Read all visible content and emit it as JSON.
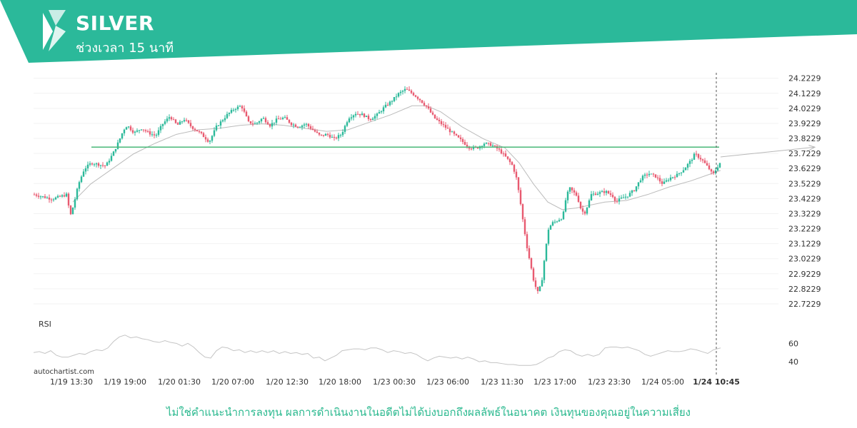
{
  "header": {
    "symbol": "SILVER",
    "timeframe": "ช่วงเวลา 15 นาที",
    "band_color": "#2bb99a"
  },
  "footer": {
    "watermark": "autochartist.com",
    "disclaimer": "ไม่ใช่คำแนะนำการลงทุน ผลการดำเนินงานในอดีตไม่ได้บ่งบอกถึงผลลัพธ์ในอนาคต เงินทุนของคุณอยู่ในความเสี่ยง"
  },
  "chart_data": {
    "type": "candlestick",
    "y_ticks": [
      "24.2229",
      "24.1229",
      "24.0229",
      "23.9229",
      "23.8229",
      "23.7229",
      "23.6229",
      "23.5229",
      "23.4229",
      "23.3229",
      "23.2229",
      "23.1229",
      "23.0229",
      "22.9229",
      "22.8229",
      "22.7229"
    ],
    "ylim": [
      22.68,
      24.25
    ],
    "x_ticks": [
      "1/19 13:30",
      "1/19 19:00",
      "1/20 01:30",
      "1/20 07:00",
      "1/20 12:30",
      "1/20 18:00",
      "1/23 00:30",
      "1/23 06:00",
      "1/23 11:30",
      "1/23 17:00",
      "1/23 23:30",
      "1/24 05:00",
      "1/24 10:45"
    ],
    "resistance_level": 23.765,
    "colors": {
      "up": "#2bb99a",
      "down": "#e85a70",
      "support": "#48b878",
      "ma": "#bbbbbb",
      "rsi": "#c4c4c4"
    },
    "price_path": [
      [
        0,
        23.45
      ],
      [
        8,
        23.44
      ],
      [
        25,
        23.42
      ],
      [
        46,
        23.45
      ],
      [
        50,
        23.3
      ],
      [
        55,
        23.38
      ],
      [
        62,
        23.52
      ],
      [
        70,
        23.62
      ],
      [
        80,
        23.66
      ],
      [
        90,
        23.65
      ],
      [
        100,
        23.64
      ],
      [
        110,
        23.72
      ],
      [
        118,
        23.8
      ],
      [
        125,
        23.88
      ],
      [
        130,
        23.91
      ],
      [
        140,
        23.86
      ],
      [
        150,
        23.89
      ],
      [
        160,
        23.86
      ],
      [
        170,
        23.84
      ],
      [
        180,
        23.92
      ],
      [
        190,
        23.97
      ],
      [
        200,
        23.91
      ],
      [
        210,
        23.95
      ],
      [
        220,
        23.9
      ],
      [
        232,
        23.86
      ],
      [
        245,
        23.8
      ],
      [
        255,
        23.9
      ],
      [
        270,
        23.98
      ],
      [
        280,
        24.02
      ],
      [
        290,
        24.04
      ],
      [
        300,
        23.93
      ],
      [
        310,
        23.92
      ],
      [
        320,
        23.96
      ],
      [
        330,
        23.91
      ],
      [
        340,
        23.95
      ],
      [
        350,
        23.96
      ],
      [
        360,
        23.92
      ],
      [
        370,
        23.9
      ],
      [
        380,
        23.92
      ],
      [
        390,
        23.88
      ],
      [
        400,
        23.84
      ],
      [
        410,
        23.85
      ],
      [
        420,
        23.82
      ],
      [
        430,
        23.85
      ],
      [
        440,
        23.96
      ],
      [
        450,
        23.99
      ],
      [
        460,
        23.98
      ],
      [
        470,
        23.95
      ],
      [
        480,
        23.98
      ],
      [
        490,
        24.03
      ],
      [
        500,
        24.07
      ],
      [
        510,
        24.12
      ],
      [
        520,
        24.15
      ],
      [
        530,
        24.12
      ],
      [
        540,
        24.08
      ],
      [
        550,
        24.03
      ],
      [
        560,
        23.96
      ],
      [
        570,
        23.92
      ],
      [
        580,
        23.88
      ],
      [
        590,
        23.84
      ],
      [
        600,
        23.8
      ],
      [
        610,
        23.76
      ],
      [
        620,
        23.76
      ],
      [
        630,
        23.79
      ],
      [
        640,
        23.78
      ],
      [
        650,
        23.75
      ],
      [
        660,
        23.7
      ],
      [
        670,
        23.64
      ],
      [
        675,
        23.56
      ],
      [
        680,
        23.42
      ],
      [
        685,
        23.25
      ],
      [
        690,
        23.1
      ],
      [
        695,
        22.98
      ],
      [
        700,
        22.86
      ],
      [
        705,
        22.8
      ],
      [
        710,
        22.85
      ],
      [
        715,
        23.05
      ],
      [
        720,
        23.22
      ],
      [
        725,
        23.26
      ],
      [
        730,
        23.27
      ],
      [
        740,
        23.3
      ],
      [
        745,
        23.44
      ],
      [
        750,
        23.49
      ],
      [
        760,
        23.44
      ],
      [
        765,
        23.36
      ],
      [
        770,
        23.32
      ],
      [
        775,
        23.38
      ],
      [
        780,
        23.45
      ],
      [
        790,
        23.46
      ],
      [
        800,
        23.47
      ],
      [
        810,
        23.44
      ],
      [
        815,
        23.4
      ],
      [
        820,
        23.42
      ],
      [
        830,
        23.44
      ],
      [
        840,
        23.48
      ],
      [
        850,
        23.56
      ],
      [
        860,
        23.59
      ],
      [
        870,
        23.57
      ],
      [
        880,
        23.52
      ],
      [
        890,
        23.56
      ],
      [
        900,
        23.58
      ],
      [
        910,
        23.62
      ],
      [
        920,
        23.68
      ],
      [
        925,
        23.72
      ],
      [
        935,
        23.68
      ],
      [
        945,
        23.62
      ],
      [
        950,
        23.58
      ],
      [
        955,
        23.62
      ],
      [
        960,
        23.66
      ],
      [
        962,
        23.7
      ]
    ],
    "ma_path": [
      [
        55,
        23.4
      ],
      [
        80,
        23.52
      ],
      [
        110,
        23.62
      ],
      [
        140,
        23.72
      ],
      [
        170,
        23.79
      ],
      [
        200,
        23.85
      ],
      [
        230,
        23.88
      ],
      [
        260,
        23.89
      ],
      [
        290,
        23.91
      ],
      [
        320,
        23.92
      ],
      [
        350,
        23.91
      ],
      [
        380,
        23.89
      ],
      [
        410,
        23.87
      ],
      [
        440,
        23.88
      ],
      [
        470,
        23.93
      ],
      [
        500,
        23.98
      ],
      [
        530,
        24.04
      ],
      [
        550,
        24.04
      ],
      [
        570,
        24.0
      ],
      [
        600,
        23.9
      ],
      [
        630,
        23.82
      ],
      [
        660,
        23.76
      ],
      [
        680,
        23.66
      ],
      [
        700,
        23.52
      ],
      [
        720,
        23.4
      ],
      [
        740,
        23.35
      ],
      [
        760,
        23.36
      ],
      [
        780,
        23.38
      ],
      [
        800,
        23.4
      ],
      [
        830,
        23.41
      ],
      [
        860,
        23.45
      ],
      [
        890,
        23.5
      ],
      [
        920,
        23.54
      ],
      [
        950,
        23.59
      ],
      [
        962,
        23.61
      ]
    ],
    "forecast": {
      "from": [
        962,
        23.7
      ],
      "to": [
        1094,
        23.765
      ]
    },
    "rsi": {
      "label": "RSI",
      "y_ticks": [
        "60",
        "40"
      ],
      "ylim": [
        30,
        75
      ],
      "values": [
        [
          0,
          50
        ],
        [
          8,
          51
        ],
        [
          16,
          49
        ],
        [
          24,
          52
        ],
        [
          32,
          47
        ],
        [
          40,
          45
        ],
        [
          48,
          45
        ],
        [
          56,
          47
        ],
        [
          64,
          49
        ],
        [
          72,
          48
        ],
        [
          80,
          51
        ],
        [
          88,
          53
        ],
        [
          96,
          52
        ],
        [
          104,
          55
        ],
        [
          112,
          62
        ],
        [
          120,
          67
        ],
        [
          128,
          69
        ],
        [
          136,
          66
        ],
        [
          144,
          67
        ],
        [
          152,
          65
        ],
        [
          160,
          64
        ],
        [
          168,
          62
        ],
        [
          176,
          61
        ],
        [
          184,
          63
        ],
        [
          192,
          61
        ],
        [
          200,
          60
        ],
        [
          208,
          57
        ],
        [
          216,
          60
        ],
        [
          224,
          56
        ],
        [
          232,
          50
        ],
        [
          240,
          45
        ],
        [
          248,
          44
        ],
        [
          256,
          52
        ],
        [
          264,
          56
        ],
        [
          272,
          55
        ],
        [
          280,
          52
        ],
        [
          288,
          53
        ],
        [
          296,
          50
        ],
        [
          304,
          52
        ],
        [
          312,
          50
        ],
        [
          320,
          52
        ],
        [
          328,
          50
        ],
        [
          336,
          52
        ],
        [
          344,
          49
        ],
        [
          352,
          51
        ],
        [
          360,
          49
        ],
        [
          368,
          50
        ],
        [
          376,
          48
        ],
        [
          384,
          49
        ],
        [
          392,
          44
        ],
        [
          400,
          45
        ],
        [
          408,
          41
        ],
        [
          416,
          44
        ],
        [
          424,
          47
        ],
        [
          432,
          52
        ],
        [
          440,
          53
        ],
        [
          448,
          54
        ],
        [
          456,
          54
        ],
        [
          464,
          53
        ],
        [
          472,
          55
        ],
        [
          480,
          55
        ],
        [
          488,
          53
        ],
        [
          496,
          50
        ],
        [
          504,
          52
        ],
        [
          512,
          51
        ],
        [
          520,
          49
        ],
        [
          528,
          50
        ],
        [
          536,
          48
        ],
        [
          544,
          44
        ],
        [
          552,
          41
        ],
        [
          560,
          44
        ],
        [
          568,
          46
        ],
        [
          576,
          45
        ],
        [
          584,
          44
        ],
        [
          592,
          45
        ],
        [
          600,
          43
        ],
        [
          608,
          45
        ],
        [
          616,
          43
        ],
        [
          624,
          40
        ],
        [
          632,
          41
        ],
        [
          640,
          39
        ],
        [
          648,
          39
        ],
        [
          656,
          38
        ],
        [
          664,
          37
        ],
        [
          672,
          37
        ],
        [
          680,
          36
        ],
        [
          688,
          36
        ],
        [
          696,
          36
        ],
        [
          704,
          37
        ],
        [
          712,
          40
        ],
        [
          720,
          44
        ],
        [
          728,
          46
        ],
        [
          736,
          51
        ],
        [
          744,
          53
        ],
        [
          752,
          52
        ],
        [
          760,
          48
        ],
        [
          768,
          46
        ],
        [
          776,
          48
        ],
        [
          784,
          46
        ],
        [
          792,
          48
        ],
        [
          800,
          55
        ],
        [
          808,
          56
        ],
        [
          816,
          56
        ],
        [
          824,
          55
        ],
        [
          832,
          56
        ],
        [
          840,
          54
        ],
        [
          848,
          52
        ],
        [
          856,
          48
        ],
        [
          864,
          46
        ],
        [
          872,
          48
        ],
        [
          880,
          50
        ],
        [
          888,
          52
        ],
        [
          896,
          51
        ],
        [
          904,
          51
        ],
        [
          912,
          52
        ],
        [
          920,
          54
        ],
        [
          928,
          53
        ],
        [
          936,
          51
        ],
        [
          944,
          49
        ],
        [
          952,
          53
        ],
        [
          962,
          55
        ]
      ]
    }
  }
}
